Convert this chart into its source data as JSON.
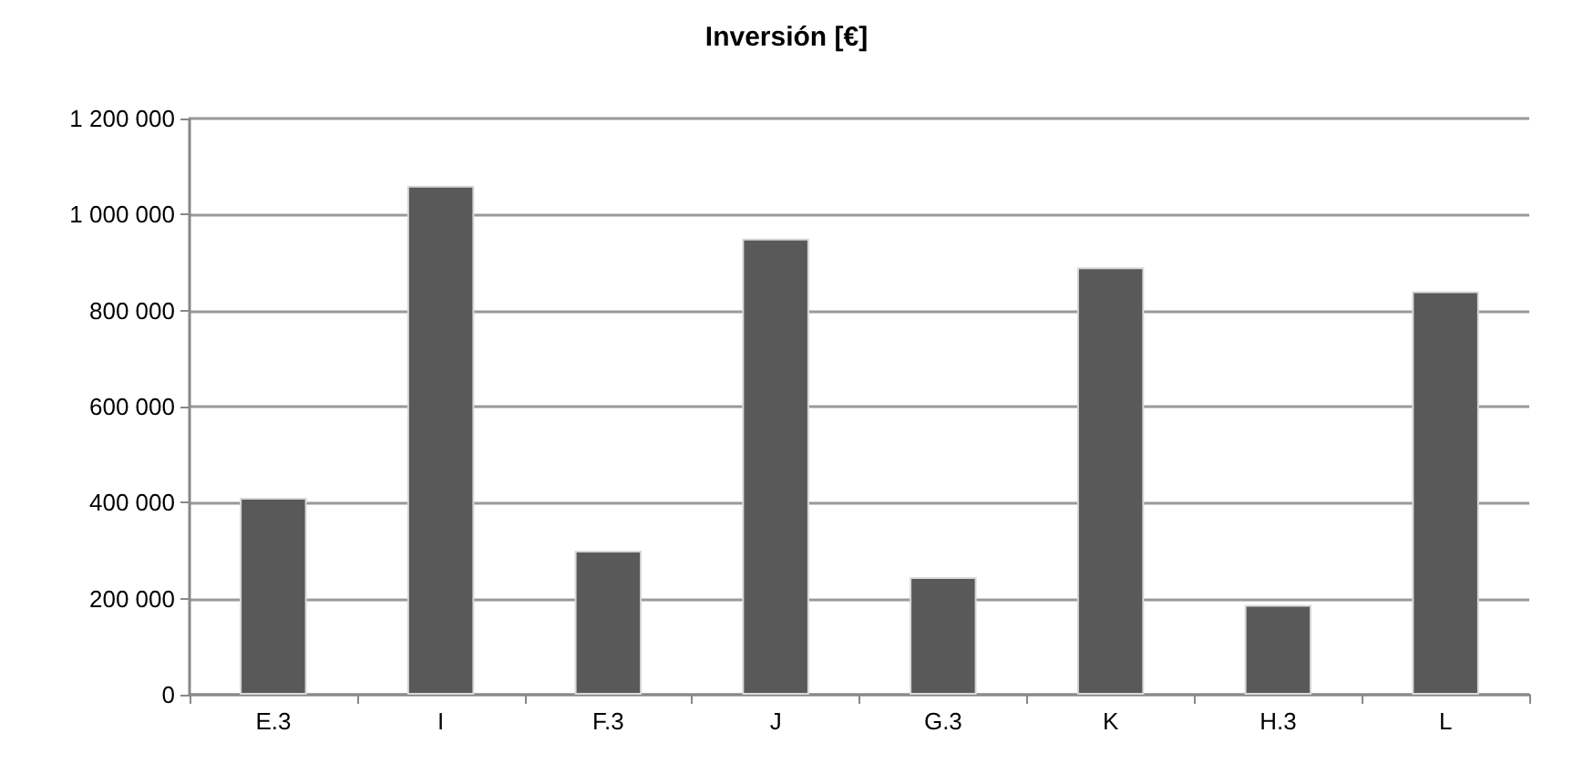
{
  "chart_data": {
    "type": "bar",
    "title": "Inversión [€]",
    "categories": [
      "E.3",
      "I",
      "F.3",
      "J",
      "G.3",
      "K",
      "H.3",
      "L"
    ],
    "values": [
      410000,
      1060000,
      300000,
      950000,
      245000,
      890000,
      187000,
      840000
    ],
    "color": "#595959",
    "ylim": [
      0,
      1200000
    ],
    "yticks": [
      0,
      {
        "value": 200000,
        "label": "200 000"
      },
      {
        "value": 400000,
        "label": "400 000"
      },
      {
        "value": 600000,
        "label": "600 000"
      },
      {
        "value": 800000,
        "label": "800 000"
      },
      {
        "value": 1000000,
        "label": "1 000 000"
      },
      {
        "value": 1200000,
        "label": "1 200 000"
      }
    ],
    "grid": "y"
  }
}
